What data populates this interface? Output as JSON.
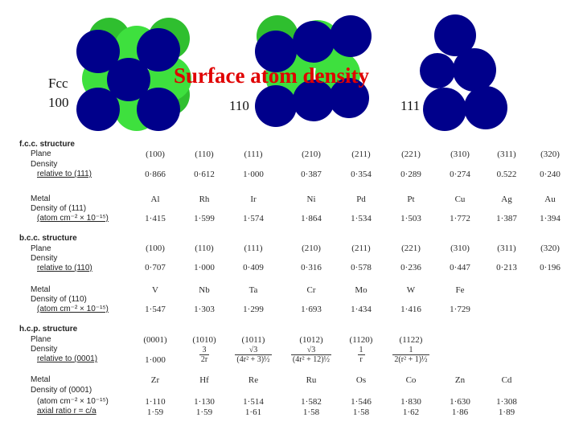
{
  "header": {
    "title": "Surface atom density",
    "labels": {
      "fcc": "Fcc",
      "p100": "100",
      "p110": "110",
      "p111": "111"
    },
    "colors": {
      "title": "#e00000",
      "atom_dark": "#00008b",
      "atom_green": "#2ecc2e",
      "atom_green_dark": "#1f8f1f"
    }
  },
  "table": {
    "fcc": {
      "heading": "f.c.c. structure",
      "plane_label": "Plane",
      "density_label": "Density",
      "relative_label": "relative to (111)",
      "planes": [
        "(100)",
        "(110)",
        "(111)",
        "(210)",
        "(211)",
        "(221)",
        "(310)",
        "(311)",
        "(320)"
      ],
      "relative": [
        "0·866",
        "0·612",
        "1·000",
        "0·387",
        "0·354",
        "0·289",
        "0·274",
        "0.522",
        "0·240"
      ],
      "metal_label": "Metal",
      "metal_density_label": "Density of (111)",
      "units_label": "(atom cm⁻² × 10⁻¹⁵)",
      "metals": [
        "Al",
        "Rh",
        "Ir",
        "Ni",
        "Pd",
        "Pt",
        "Cu",
        "Ag",
        "Au"
      ],
      "densities": [
        "1·415",
        "1·599",
        "1·574",
        "1·864",
        "1·534",
        "1·503",
        "1·772",
        "1·387",
        "1·394"
      ]
    },
    "bcc": {
      "heading": "b.c.c. structure",
      "plane_label": "Plane",
      "density_label": "Density",
      "relative_label": "relative to (110)",
      "planes": [
        "(100)",
        "(110)",
        "(111)",
        "(210)",
        "(211)",
        "(221)",
        "(310)",
        "(311)",
        "(320)"
      ],
      "relative": [
        "0·707",
        "1·000",
        "0·409",
        "0·316",
        "0·578",
        "0·236",
        "0·447",
        "0·213",
        "0·196"
      ],
      "metal_label": "Metal",
      "metal_density_label": "Density of (110)",
      "units_label": "(atom cm⁻² × 10⁻¹⁵)",
      "metals": [
        "V",
        "Nb",
        "Ta",
        "Cr",
        "Mo",
        "W",
        "Fe"
      ],
      "densities": [
        "1·547",
        "1·303",
        "1·299",
        "1·693",
        "1·434",
        "1·416",
        "1·729"
      ]
    },
    "hcp": {
      "heading": "h.c.p. structure",
      "plane_label": "Plane",
      "density_label": "Density",
      "relative_label": "relative to (0001)",
      "planes": [
        "(0001)",
        "(1010)",
        "(1011)",
        "(1012)",
        "(1120)",
        "(1122)"
      ],
      "relative": [
        {
          "plain": "1·000"
        },
        {
          "num": "3",
          "den": "2r"
        },
        {
          "num": "√3",
          "den": "(4r² + 3)½"
        },
        {
          "num": "√3",
          "den": "(4r² + 12)½"
        },
        {
          "num": "1",
          "den": "r"
        },
        {
          "num": "1",
          "den": "2(r² + 1)½"
        }
      ],
      "metal_label": "Metal",
      "metal_density_label": "Density of (0001)",
      "units_label": "(atom cm⁻² × 10⁻¹⁵)",
      "axial_label": "axial ratio r = c/a",
      "metals": [
        "Zr",
        "Hf",
        "Re",
        "Ru",
        "Os",
        "Co",
        "Zn",
        "Cd"
      ],
      "densities": [
        "1·110",
        "1·130",
        "1·514",
        "1·582",
        "1·546",
        "1·830",
        "1·630",
        "1·308"
      ],
      "axial": [
        "1·59",
        "1·59",
        "1·61",
        "1·58",
        "1·58",
        "1·62",
        "1·86",
        "1·89"
      ]
    }
  }
}
